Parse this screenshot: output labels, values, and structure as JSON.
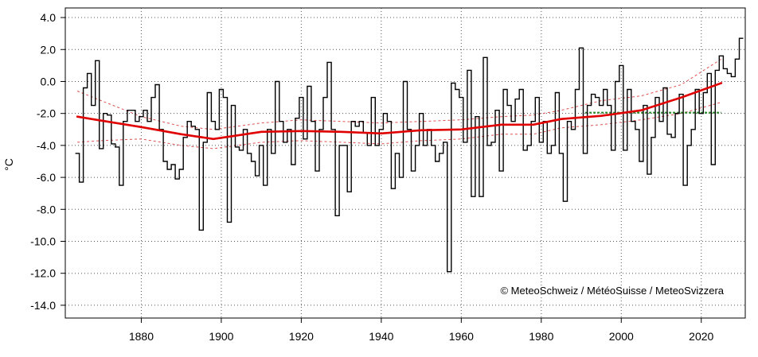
{
  "chart_data": {
    "type": "line",
    "ylabel": "°C",
    "ylim": [
      -14.8,
      4.6
    ],
    "xlim": [
      1861,
      2031
    ],
    "y_ticks": [
      4.0,
      2.0,
      0.0,
      -2.0,
      -4.0,
      -6.0,
      -8.0,
      -10.0,
      -12.0,
      -14.0
    ],
    "y_tick_labels": [
      "4.0",
      "2.0",
      "0.0",
      "-2.0",
      "-4.0",
      "-6.0",
      "-8.0",
      "-10.0",
      "-12.0",
      "-14.0"
    ],
    "x_ticks": [
      1880,
      1900,
      1920,
      1940,
      1960,
      1980,
      2000,
      2020
    ],
    "x_tick_labels": [
      "1880",
      "1900",
      "1920",
      "1940",
      "1960",
      "1980",
      "2000",
      "2020"
    ],
    "grid": true,
    "annotation": "© MeteoSchweiz / MétéoSuisse / MeteoSvizzera",
    "colors": {
      "annual": "#000000",
      "smooth": "#e00000",
      "band": "#e05050",
      "normal": "#2e8b2e",
      "grid": "#555555"
    },
    "series": [
      {
        "style": "step",
        "x_start": 1864,
        "values": [
          -4.5,
          -6.3,
          -0.4,
          0.5,
          -1.5,
          1.3,
          -4.2,
          -2.0,
          -2.1,
          -3.9,
          -4.1,
          -6.5,
          -2.5,
          -1.8,
          -1.8,
          -2.5,
          -2.2,
          -1.8,
          -2.5,
          -1.0,
          -0.2,
          -3.0,
          -5.0,
          -5.5,
          -5.2,
          -6.1,
          -5.5,
          -3.5,
          -2.5,
          -2.8,
          -3.0,
          -9.3,
          -3.8,
          -0.7,
          -2.5,
          -3.0,
          -0.5,
          -1.0,
          -8.8,
          -1.5,
          -4.1,
          -4.3,
          -3.0,
          -4.5,
          -5.0,
          -5.9,
          -4.0,
          -6.5,
          -3.0,
          -4.5,
          0.0,
          -2.5,
          -3.8,
          -3.0,
          -5.2,
          -2.3,
          -1.0,
          -3.6,
          -0.3,
          -2.5,
          -5.6,
          -3.0,
          -1.0,
          1.2,
          -3.0,
          -8.4,
          -4.0,
          -4.0,
          -6.9,
          -2.5,
          -2.8,
          -2.5,
          -3.2,
          -4.0,
          -1.0,
          -4.0,
          -3.0,
          -2.0,
          -2.5,
          -6.7,
          -4.5,
          -6.0,
          0.0,
          -3.0,
          -5.6,
          -4.0,
          -2.0,
          -4.0,
          -3.0,
          -4.0,
          -5.0,
          -4.5,
          -3.8,
          -11.9,
          -0.1,
          -0.5,
          -1.0,
          -3.8,
          0.7,
          -7.2,
          -2.2,
          -7.2,
          1.5,
          -4.0,
          -3.8,
          -1.8,
          -5.6,
          -0.5,
          -1.5,
          -2.5,
          -1.1,
          -0.5,
          -4.3,
          -4.0,
          -2.5,
          -1.0,
          -3.8,
          -2.5,
          -4.5,
          -4.0,
          -0.7,
          -4.5,
          -7.5,
          -2.5,
          -3.0,
          -0.5,
          2.1,
          -4.5,
          -1.5,
          -0.8,
          -1.0,
          -1.5,
          -0.5,
          -1.5,
          -4.3,
          0.0,
          1.0,
          -4.3,
          -0.5,
          -2.5,
          -3.0,
          -5.0,
          -1.5,
          -5.8,
          -3.5,
          -1.0,
          -2.5,
          -0.4,
          -3.3,
          -3.5,
          -2.0,
          -0.8,
          -6.5,
          -4.0,
          -3.0,
          -0.5,
          -2.0,
          -0.7,
          0.5,
          -5.2,
          0.7,
          1.6,
          0.8,
          0.5,
          0.3,
          1.4,
          2.7
        ]
      },
      {
        "style": "smooth",
        "x": [
          1864,
          1870,
          1880,
          1890,
          1898,
          1910,
          1920,
          1930,
          1940,
          1950,
          1960,
          1970,
          1978,
          1985,
          1995,
          2005,
          2015,
          2025
        ],
        "values": [
          -2.2,
          -2.45,
          -2.85,
          -3.3,
          -3.6,
          -3.15,
          -3.1,
          -3.15,
          -3.25,
          -3.05,
          -3.0,
          -2.7,
          -2.7,
          -2.35,
          -2.15,
          -1.8,
          -1.0,
          -0.1
        ]
      },
      {
        "style": "band-upper",
        "x": [
          1864,
          1870,
          1880,
          1890,
          1898,
          1910,
          1920,
          1930,
          1940,
          1950,
          1960,
          1970,
          1978,
          1985,
          1995,
          2005,
          2015,
          2025
        ],
        "values": [
          -0.6,
          -1.2,
          -2.2,
          -2.8,
          -3.0,
          -2.6,
          -2.4,
          -2.5,
          -2.6,
          -2.5,
          -2.4,
          -2.2,
          -2.1,
          -1.8,
          -1.2,
          -0.9,
          -0.2,
          1.4
        ]
      },
      {
        "style": "band-lower",
        "x": [
          1864,
          1870,
          1880,
          1890,
          1898,
          1910,
          1920,
          1930,
          1940,
          1950,
          1960,
          1970,
          1978,
          1985,
          1995,
          2005,
          2015,
          2025
        ],
        "values": [
          -3.8,
          -3.7,
          -3.6,
          -4.0,
          -4.2,
          -3.8,
          -3.7,
          -3.8,
          -3.9,
          -3.7,
          -3.6,
          -3.3,
          -3.3,
          -2.9,
          -2.7,
          -2.4,
          -2.0,
          -1.3
        ]
      },
      {
        "style": "normal",
        "x": [
          1991,
          2025
        ],
        "values": [
          -1.95,
          -1.95
        ]
      }
    ]
  }
}
